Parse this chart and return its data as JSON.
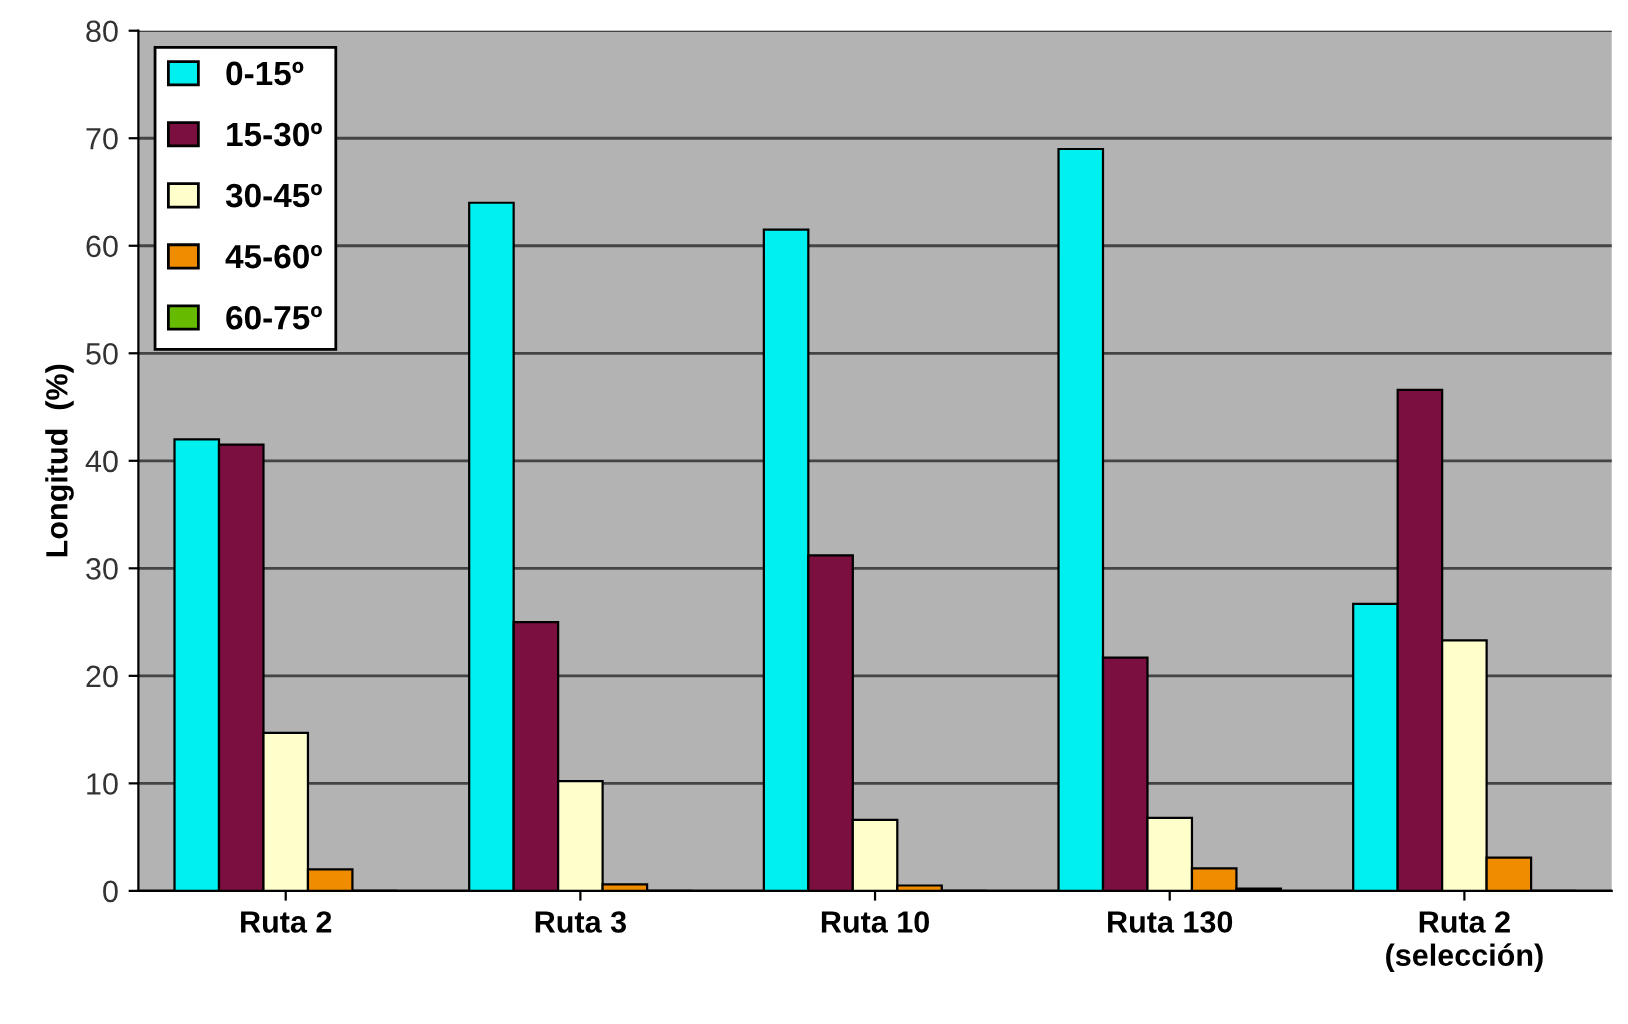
{
  "chart_data": {
    "type": "bar",
    "ylabel": "Longitud  (%)",
    "categories": [
      "Ruta 2",
      "Ruta 3",
      "Ruta 10",
      "Ruta 130",
      "Ruta 2\n(selección)"
    ],
    "series": [
      {
        "name": "0-15º",
        "color": "#00f0f0",
        "values": [
          42,
          64,
          61.5,
          69,
          26.7
        ]
      },
      {
        "name": "15-30º",
        "color": "#7a0f40",
        "values": [
          41.5,
          25,
          31.2,
          21.7,
          46.6
        ]
      },
      {
        "name": "30-45º",
        "color": "#ffffcc",
        "values": [
          14.7,
          10.2,
          6.6,
          6.8,
          23.3
        ]
      },
      {
        "name": "45-60º",
        "color": "#f08c00",
        "values": [
          2,
          0.6,
          0.5,
          2.1,
          3.1
        ]
      },
      {
        "name": "60-75º",
        "color": "#66bb00",
        "values": [
          0,
          0,
          0,
          0.2,
          0
        ]
      }
    ],
    "ylim": [
      0,
      80
    ],
    "yticks": [
      0,
      10,
      20,
      30,
      40,
      50,
      60,
      70,
      80
    ],
    "grid": "y",
    "legend": "top left"
  }
}
